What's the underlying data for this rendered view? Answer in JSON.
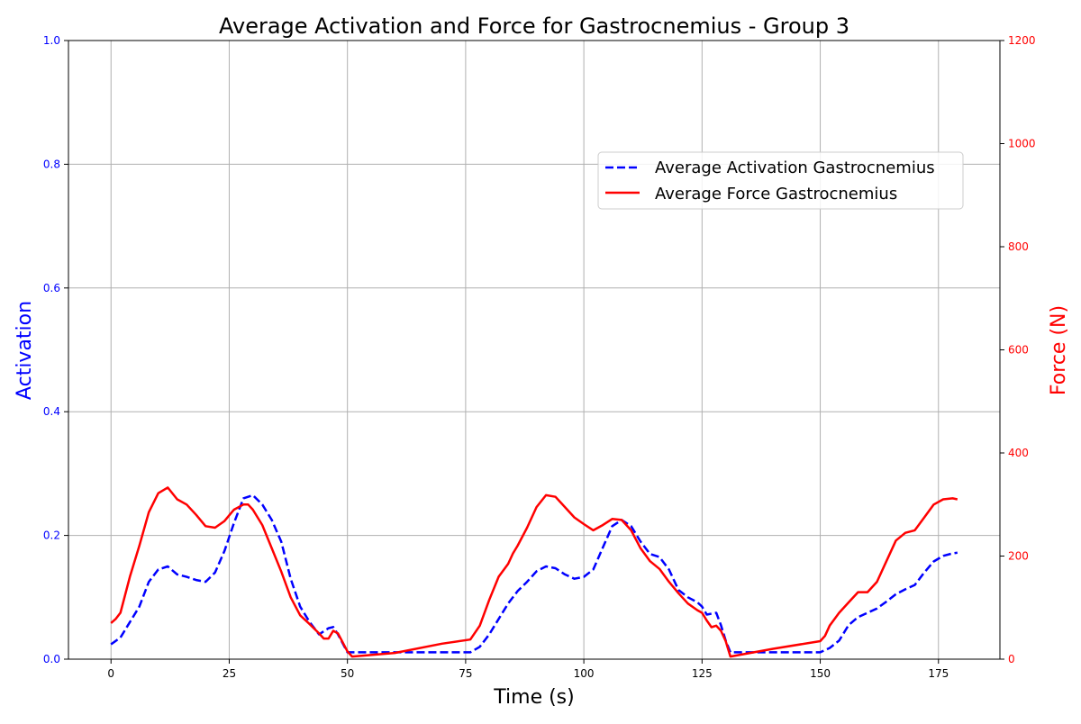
{
  "chart_data": {
    "type": "line",
    "title": "Average Activation and Force for Gastrocnemius - Group 3",
    "xlabel": "Time (s)",
    "ylabel_left": "Activation",
    "ylabel_right": "Force (N)",
    "xlim": [
      -9,
      188
    ],
    "ylim_left": [
      0,
      1.0
    ],
    "ylim_right": [
      0,
      1200
    ],
    "x_ticks": [
      0,
      25,
      50,
      75,
      100,
      125,
      150,
      175
    ],
    "x_tick_labels": [
      "0",
      "25",
      "50",
      "75",
      "100",
      "125",
      "150",
      "175"
    ],
    "y_left_ticks": [
      0.0,
      0.2,
      0.4,
      0.6,
      0.8,
      1.0
    ],
    "y_left_tick_labels": [
      "0.0",
      "0.2",
      "0.4",
      "0.6",
      "0.8",
      "1.0"
    ],
    "y_right_ticks": [
      0,
      200,
      400,
      600,
      800,
      1000,
      1200
    ],
    "y_right_tick_labels": [
      "0",
      "200",
      "400",
      "600",
      "800",
      "1000",
      "1200"
    ],
    "grid": true,
    "legend_position": "upper-right",
    "colors": {
      "activation": "#0000ff",
      "force": "#ff0000",
      "grid": "#b0b0b0",
      "axis": "#000000"
    },
    "series": [
      {
        "name": "Average Activation Gastrocnemius",
        "axis": "left",
        "style": "dashed",
        "color": "#0000ff",
        "x": [
          0,
          2,
          4,
          6,
          8,
          10,
          12,
          14,
          16,
          18,
          20,
          22,
          24,
          26,
          28,
          30,
          32,
          34,
          36,
          38,
          40,
          42,
          44,
          46,
          47,
          48,
          50,
          52,
          60,
          70,
          76,
          78,
          80,
          82,
          84,
          86,
          88,
          90,
          92,
          94,
          96,
          98,
          100,
          102,
          104,
          106,
          108,
          110,
          112,
          114,
          116,
          118,
          120,
          122,
          124,
          125,
          126,
          128,
          129,
          130,
          131,
          140,
          150,
          152,
          154,
          156,
          158,
          160,
          162,
          164,
          166,
          168,
          170,
          172,
          174,
          176,
          178,
          179
        ],
        "y": [
          0.024,
          0.035,
          0.06,
          0.085,
          0.125,
          0.145,
          0.15,
          0.137,
          0.133,
          0.128,
          0.125,
          0.14,
          0.175,
          0.22,
          0.26,
          0.265,
          0.25,
          0.225,
          0.19,
          0.13,
          0.085,
          0.06,
          0.04,
          0.05,
          0.052,
          0.04,
          0.011,
          0.011,
          0.011,
          0.011,
          0.011,
          0.02,
          0.04,
          0.065,
          0.09,
          0.11,
          0.125,
          0.142,
          0.15,
          0.147,
          0.137,
          0.13,
          0.133,
          0.145,
          0.18,
          0.215,
          0.225,
          0.215,
          0.19,
          0.17,
          0.165,
          0.145,
          0.112,
          0.1,
          0.092,
          0.085,
          0.072,
          0.075,
          0.055,
          0.03,
          0.011,
          0.011,
          0.011,
          0.018,
          0.03,
          0.055,
          0.068,
          0.075,
          0.082,
          0.093,
          0.105,
          0.113,
          0.12,
          0.14,
          0.158,
          0.167,
          0.171,
          0.172
        ]
      },
      {
        "name": "Average Force Gastrocnemius",
        "axis": "right",
        "style": "solid",
        "color": "#ff0000",
        "x": [
          0,
          1,
          2,
          4,
          6,
          8,
          10,
          12,
          14,
          16,
          18,
          20,
          22,
          24,
          26,
          28,
          29,
          30,
          32,
          34,
          36,
          38,
          40,
          42,
          44,
          45,
          46,
          47,
          48,
          50,
          51,
          60,
          70,
          76,
          78,
          80,
          82,
          84,
          85,
          86,
          88,
          90,
          92,
          94,
          96,
          98,
          100,
          102,
          104,
          106,
          108,
          110,
          112,
          114,
          116,
          118,
          120,
          122,
          124,
          125,
          126,
          127,
          128,
          129,
          130,
          131,
          140,
          150,
          151,
          152,
          154,
          156,
          158,
          160,
          162,
          164,
          166,
          168,
          170,
          172,
          174,
          176,
          178,
          179
        ],
        "y": [
          70,
          78,
          90,
          160,
          220,
          285,
          322,
          333,
          310,
          300,
          280,
          258,
          255,
          268,
          290,
          300,
          300,
          290,
          260,
          215,
          170,
          120,
          85,
          68,
          50,
          40,
          40,
          55,
          50,
          15,
          5,
          12,
          30,
          38,
          65,
          115,
          160,
          185,
          205,
          220,
          255,
          295,
          318,
          315,
          295,
          275,
          262,
          250,
          260,
          272,
          270,
          250,
          215,
          190,
          175,
          150,
          128,
          108,
          95,
          90,
          75,
          62,
          65,
          55,
          35,
          5,
          20,
          35,
          45,
          65,
          90,
          110,
          130,
          130,
          150,
          190,
          230,
          245,
          250,
          275,
          300,
          310,
          312,
          310
        ]
      }
    ]
  }
}
